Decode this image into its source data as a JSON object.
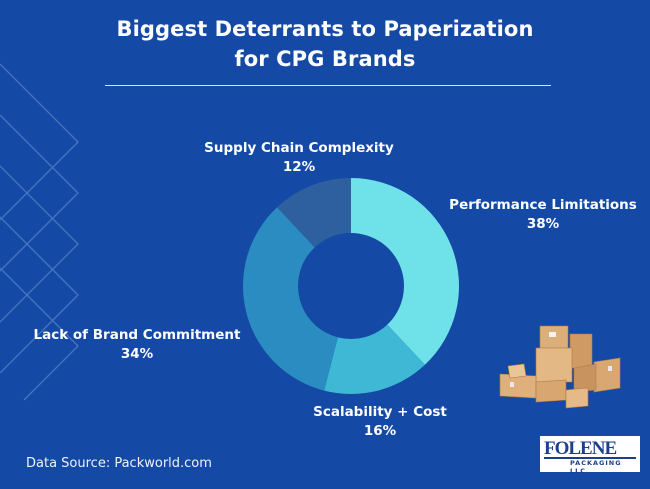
{
  "title": {
    "line1": "Biggest Deterrants to Paperization",
    "line2": "for CPG Brands"
  },
  "labels": {
    "supply": {
      "name": "Supply Chain Complexity",
      "value": "12%"
    },
    "performance": {
      "name": "Performance Limitations",
      "value": "38%"
    },
    "lack": {
      "name": "Lack of Brand Commitment",
      "value": "34%"
    },
    "scalability": {
      "name": "Scalability + Cost",
      "value": "16%"
    }
  },
  "source": "Data Source: Packworld.com",
  "logo": {
    "name": "FOLENE",
    "subtitle": "PACKAGING LLC."
  },
  "colors": {
    "background": "#1549a6",
    "performance": "#6ee2e8",
    "scalability": "#3fb8d6",
    "lack": "#2a8cc0",
    "supply": "#2e5f9e"
  },
  "chart_data": {
    "type": "pie",
    "subtype": "donut",
    "title": "Biggest Deterrants to Paperization for CPG Brands",
    "categories": [
      "Performance Limitations",
      "Scalability + Cost",
      "Lack of Brand Commitment",
      "Supply Chain Complexity"
    ],
    "values": [
      38,
      16,
      34,
      12
    ],
    "unit": "%",
    "colors": [
      "#6ee2e8",
      "#3fb8d6",
      "#2a8cc0",
      "#2e5f9e"
    ],
    "start_angle": "12 o'clock, clockwise",
    "legend": "none (direct labels)",
    "source": "Packworld.com"
  }
}
